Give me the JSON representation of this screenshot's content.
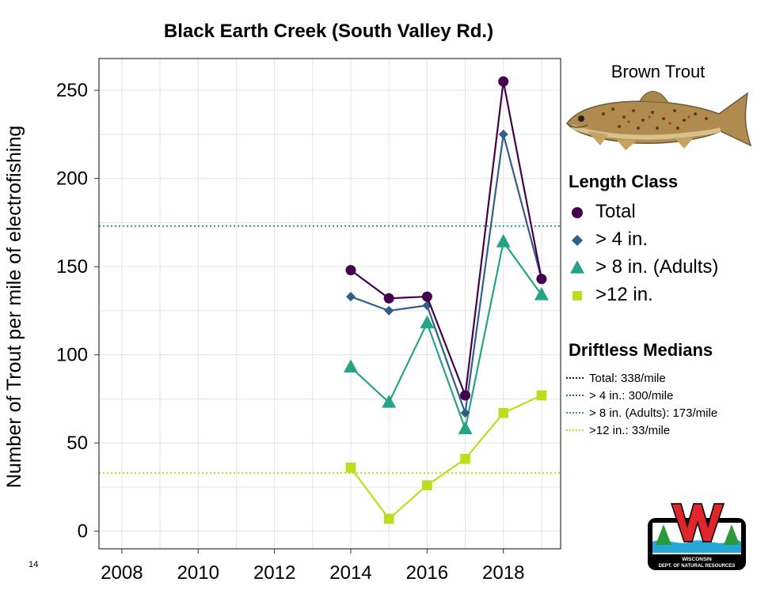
{
  "page_number": "14",
  "fish_label": "Brown Trout",
  "logo_text": {
    "line1": "WISCONSIN",
    "line2": "DEPT. OF NATURAL RESOURCES"
  },
  "colors": {
    "total": "#44004d",
    "gt4": "#2f5f8a",
    "gt8": "#25a385",
    "gt12": "#bcde1c",
    "grid": "#e3e3e3"
  },
  "chart_data": {
    "type": "line",
    "title": "Black Earth Creek (South Valley Rd.)",
    "xlabel": "",
    "ylabel": "Number of Trout per mile of electrofishing",
    "xlim": [
      2007.4,
      2019.5
    ],
    "ylim": [
      -10,
      268
    ],
    "x_ticks": [
      2008,
      2010,
      2012,
      2014,
      2016,
      2018
    ],
    "y_ticks": [
      0,
      50,
      100,
      150,
      200,
      250
    ],
    "grid": true,
    "legend_title": "Length Class",
    "legend_position": "right",
    "x": [
      2014,
      2015,
      2016,
      2017,
      2018,
      2019
    ],
    "series": [
      {
        "key": "total",
        "name": "Total",
        "marker": "circle",
        "values": [
          148,
          132,
          133,
          77,
          255,
          143
        ]
      },
      {
        "key": "gt4",
        "name": "> 4 in.",
        "marker": "diamond",
        "values": [
          133,
          125,
          128,
          67,
          225,
          143
        ]
      },
      {
        "key": "gt8",
        "name": "> 8 in. (Adults)",
        "marker": "triangle",
        "values": [
          93,
          73,
          118,
          58,
          164,
          134
        ]
      },
      {
        "key": "gt12",
        "name": ">12 in.",
        "marker": "square",
        "values": [
          36,
          7,
          26,
          41,
          67,
          77
        ]
      }
    ],
    "medians_title": "Driftless Medians",
    "medians": [
      {
        "key": "total",
        "label": "Total: 338/mile",
        "value": 338
      },
      {
        "key": "gt4",
        "label": "> 4 in.: 300/mile",
        "value": 300
      },
      {
        "key": "gt8",
        "label": "> 8 in. (Adults): 173/mile",
        "value": 173
      },
      {
        "key": "gt12",
        "label": ">12 in.: 33/mile",
        "value": 33
      }
    ]
  }
}
